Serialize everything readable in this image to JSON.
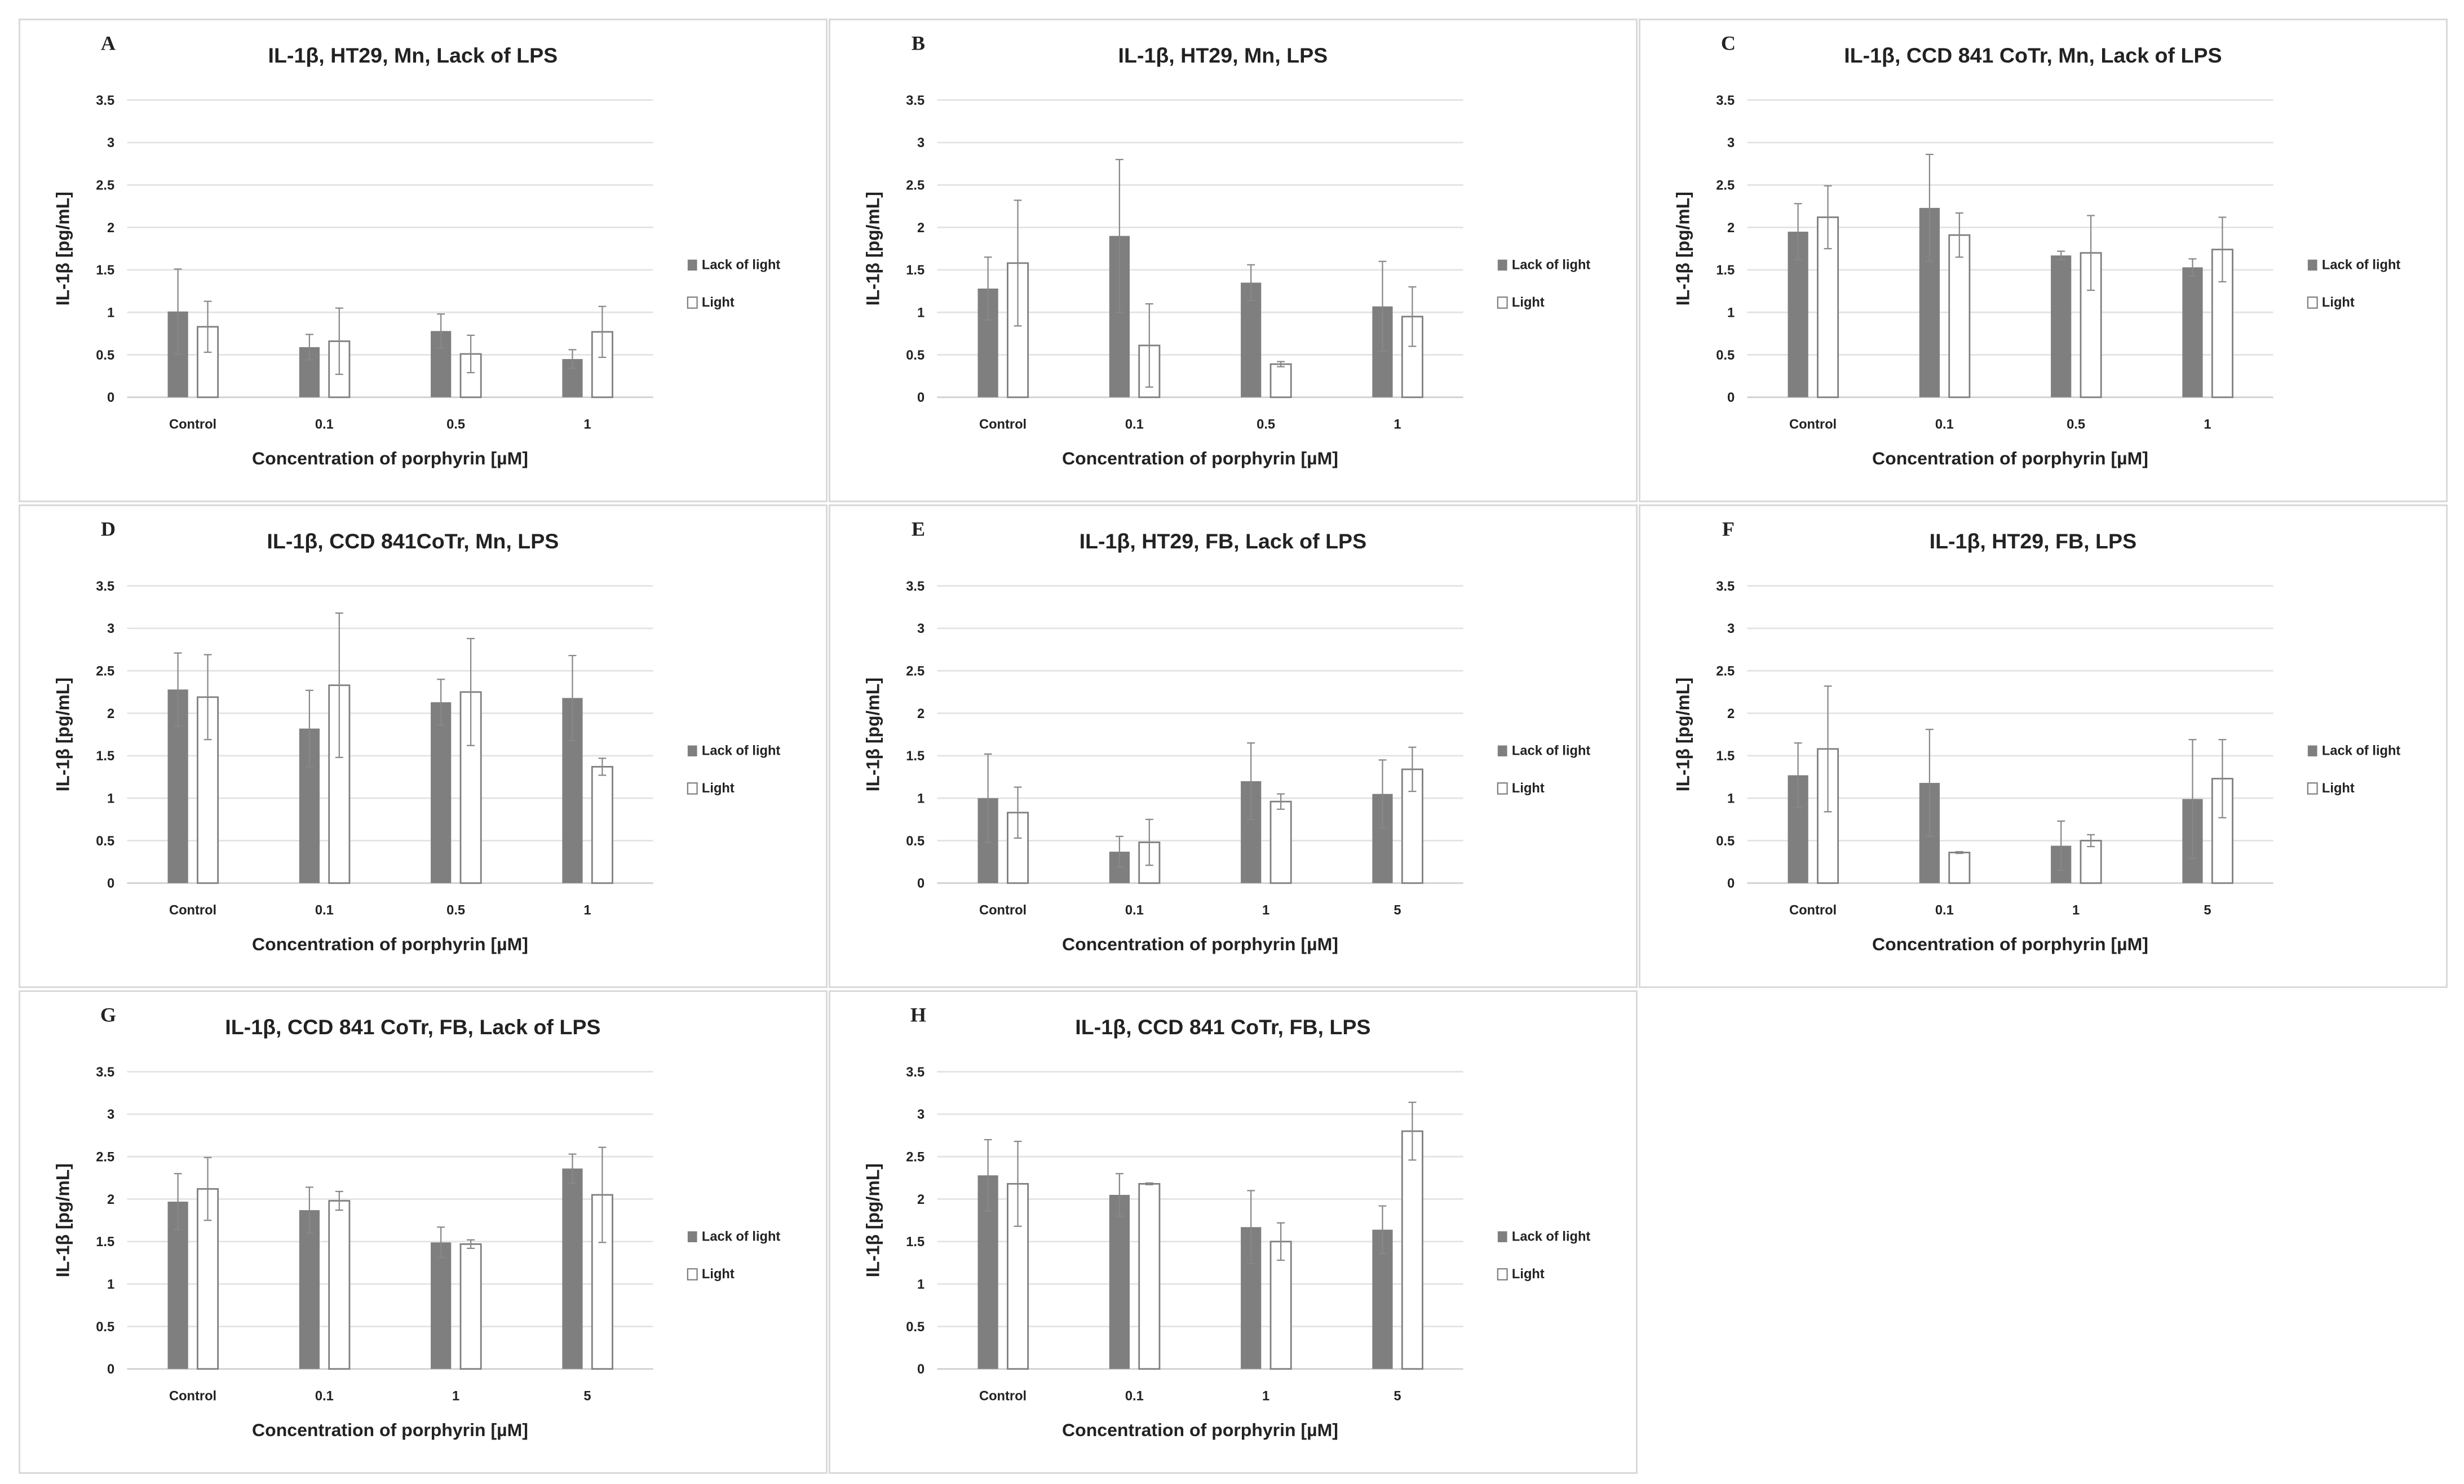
{
  "chart_data": [
    {
      "type": "bar",
      "letter": "A",
      "title": "IL-1β, HT29, Mn, Lack of LPS",
      "xlabel": "Concentration of porphyrin [µM]",
      "ylabel": "IL-1β [pg/mL]",
      "ylim": [
        0,
        3.5
      ],
      "yticks": [
        "0",
        "0.5",
        "1",
        "1.5",
        "2",
        "2.5",
        "3",
        "3.5"
      ],
      "grid": true,
      "legend": "right",
      "categories": [
        "Control",
        "0.1",
        "0.5",
        "1"
      ],
      "series": [
        {
          "name": "Lack of light",
          "color": "#7f7f7f",
          "values": [
            1.01,
            0.59,
            0.78,
            0.45
          ],
          "errors": [
            0.5,
            0.15,
            0.2,
            0.11
          ]
        },
        {
          "name": "Light",
          "color": "#ffffff",
          "values": [
            0.83,
            0.66,
            0.51,
            0.77
          ],
          "errors": [
            0.3,
            0.39,
            0.22,
            0.3
          ]
        }
      ]
    },
    {
      "type": "bar",
      "letter": "B",
      "title": "IL-1β, HT29, Mn, LPS",
      "xlabel": "Concentration of porphyrin [µM]",
      "ylabel": "IL-1β [pg/mL]",
      "ylim": [
        0,
        3.5
      ],
      "yticks": [
        "0",
        "0.5",
        "1",
        "1.5",
        "2",
        "2.5",
        "3",
        "3.5"
      ],
      "grid": true,
      "legend": "right",
      "categories": [
        "Control",
        "0.1",
        "0.5",
        "1"
      ],
      "series": [
        {
          "name": "Lack of light",
          "color": "#7f7f7f",
          "values": [
            1.28,
            1.9,
            1.35,
            1.07
          ],
          "errors": [
            0.37,
            0.9,
            0.21,
            0.53
          ]
        },
        {
          "name": "Light",
          "color": "#ffffff",
          "values": [
            1.58,
            0.61,
            0.39,
            0.95
          ],
          "errors": [
            0.74,
            0.49,
            0.03,
            0.35
          ]
        }
      ]
    },
    {
      "type": "bar",
      "letter": "C",
      "title": "IL-1β, CCD 841 CoTr, Mn, Lack of LPS",
      "xlabel": "Concentration of porphyrin [µM]",
      "ylabel": "IL-1β [pg/mL]",
      "ylim": [
        0,
        3.5
      ],
      "yticks": [
        "0",
        "0.5",
        "1",
        "1.5",
        "2",
        "2.5",
        "3",
        "3.5"
      ],
      "grid": true,
      "legend": "right",
      "categories": [
        "Control",
        "0.1",
        "0.5",
        "1"
      ],
      "series": [
        {
          "name": "Lack of light",
          "color": "#7f7f7f",
          "values": [
            1.95,
            2.23,
            1.67,
            1.53
          ],
          "errors": [
            0.33,
            0.63,
            0.05,
            0.1
          ]
        },
        {
          "name": "Light",
          "color": "#ffffff",
          "values": [
            2.12,
            1.91,
            1.7,
            1.74
          ],
          "errors": [
            0.37,
            0.26,
            0.44,
            0.38
          ]
        }
      ]
    },
    {
      "type": "bar",
      "letter": "D",
      "title": "IL-1β, CCD 841CoTr, Mn, LPS",
      "xlabel": "Concentration of porphyrin [µM]",
      "ylabel": "IL-1β [pg/mL]",
      "ylim": [
        0,
        3.5
      ],
      "yticks": [
        "0",
        "0.5",
        "1",
        "1.5",
        "2",
        "2.5",
        "3",
        "3.5"
      ],
      "grid": true,
      "legend": "right",
      "categories": [
        "Control",
        "0.1",
        "0.5",
        "1"
      ],
      "series": [
        {
          "name": "Lack of light",
          "color": "#7f7f7f",
          "values": [
            2.28,
            1.82,
            2.13,
            2.18
          ],
          "errors": [
            0.43,
            0.45,
            0.27,
            0.5
          ]
        },
        {
          "name": "Light",
          "color": "#ffffff",
          "values": [
            2.19,
            2.33,
            2.25,
            1.37
          ],
          "errors": [
            0.5,
            0.85,
            0.63,
            0.1
          ]
        }
      ]
    },
    {
      "type": "bar",
      "letter": "E",
      "title": "IL-1β, HT29, FB, Lack of LPS",
      "xlabel": "Concentration of porphyrin [µM]",
      "ylabel": "IL-1β [pg/mL]",
      "ylim": [
        0,
        3.5
      ],
      "yticks": [
        "0",
        "0.5",
        "1",
        "1.5",
        "2",
        "2.5",
        "3",
        "3.5"
      ],
      "grid": true,
      "legend": "right",
      "categories": [
        "Control",
        "0.1",
        "1",
        "5"
      ],
      "series": [
        {
          "name": "Lack of light",
          "color": "#7f7f7f",
          "values": [
            1.0,
            0.37,
            1.2,
            1.05
          ],
          "errors": [
            0.52,
            0.18,
            0.45,
            0.4
          ]
        },
        {
          "name": "Light",
          "color": "#ffffff",
          "values": [
            0.83,
            0.48,
            0.96,
            1.34
          ],
          "errors": [
            0.3,
            0.27,
            0.09,
            0.26
          ]
        }
      ]
    },
    {
      "type": "bar",
      "letter": "F",
      "title": "IL-1β, HT29, FB, LPS",
      "xlabel": "Concentration of porphyrin [µM]",
      "ylabel": "IL-1β [pg/mL]",
      "ylim": [
        0,
        3.5
      ],
      "yticks": [
        "0",
        "0.5",
        "1",
        "1.5",
        "2",
        "2.5",
        "3",
        "3.5"
      ],
      "grid": true,
      "legend": "right",
      "categories": [
        "Control",
        "0.1",
        "1",
        "5"
      ],
      "series": [
        {
          "name": "Lack of light",
          "color": "#7f7f7f",
          "values": [
            1.27,
            1.18,
            0.44,
            0.99
          ],
          "errors": [
            0.38,
            0.63,
            0.29,
            0.7
          ]
        },
        {
          "name": "Light",
          "color": "#ffffff",
          "values": [
            1.58,
            0.36,
            0.5,
            1.23
          ],
          "errors": [
            0.74,
            0.01,
            0.07,
            0.46
          ]
        }
      ]
    },
    {
      "type": "bar",
      "letter": "G",
      "title": "IL-1β, CCD 841 CoTr, FB, Lack of LPS",
      "xlabel": "Concentration of porphyrin [µM]",
      "ylabel": "IL-1β [pg/mL]",
      "ylim": [
        0,
        3.5
      ],
      "yticks": [
        "0",
        "0.5",
        "1",
        "1.5",
        "2",
        "2.5",
        "3",
        "3.5"
      ],
      "grid": true,
      "legend": "right",
      "categories": [
        "Control",
        "0.1",
        "1",
        "5"
      ],
      "series": [
        {
          "name": "Lack of light",
          "color": "#7f7f7f",
          "values": [
            1.97,
            1.87,
            1.49,
            2.36
          ],
          "errors": [
            0.33,
            0.27,
            0.18,
            0.17
          ]
        },
        {
          "name": "Light",
          "color": "#ffffff",
          "values": [
            2.12,
            1.98,
            1.47,
            2.05
          ],
          "errors": [
            0.37,
            0.11,
            0.05,
            0.56
          ]
        }
      ]
    },
    {
      "type": "bar",
      "letter": "H",
      "title": "IL-1β, CCD 841 CoTr, FB, LPS",
      "xlabel": "Concentration of porphyrin [µM]",
      "ylabel": "IL-1β [pg/mL]",
      "ylim": [
        0,
        3.5
      ],
      "yticks": [
        "0",
        "0.5",
        "1",
        "1.5",
        "2",
        "2.5",
        "3",
        "3.5"
      ],
      "grid": true,
      "legend": "right",
      "categories": [
        "Control",
        "0.1",
        "1",
        "5"
      ],
      "series": [
        {
          "name": "Lack of light",
          "color": "#7f7f7f",
          "values": [
            2.28,
            2.05,
            1.67,
            1.64
          ],
          "errors": [
            0.42,
            0.25,
            0.43,
            0.28
          ]
        },
        {
          "name": "Light",
          "color": "#ffffff",
          "values": [
            2.18,
            2.18,
            1.5,
            2.8
          ],
          "errors": [
            0.5,
            0.01,
            0.22,
            0.34
          ]
        }
      ]
    }
  ]
}
